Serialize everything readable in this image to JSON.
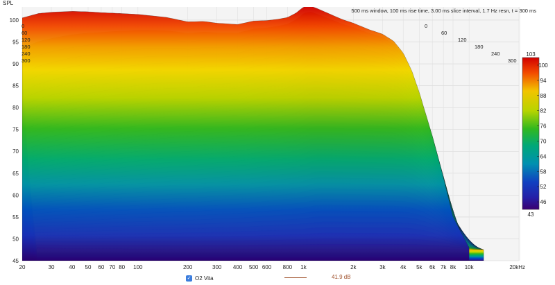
{
  "chart_data": {
    "type": "area",
    "subtype": "waterfall-3d",
    "title": "500 ms window, 100 ms rise time, 3.00 ms slice interval, 1.7 Hz resn, t = 300 ms",
    "ylabel": "SPL",
    "xlabel": "",
    "x_scale": "log",
    "xlim": [
      20,
      20000
    ],
    "ylim": [
      45,
      103
    ],
    "x_ticks": [
      "20",
      "30",
      "40",
      "50",
      "60",
      "70",
      "80",
      "100",
      "200",
      "300",
      "400",
      "500",
      "600",
      "800",
      "1k",
      "2k",
      "3k",
      "4k",
      "5k",
      "6k",
      "7k",
      "8k",
      "10k",
      "20kHz"
    ],
    "x_tick_values": [
      20,
      30,
      40,
      50,
      60,
      70,
      80,
      100,
      200,
      300,
      400,
      500,
      600,
      800,
      1000,
      2000,
      3000,
      4000,
      5000,
      6000,
      7000,
      8000,
      10000,
      20000
    ],
    "y_ticks": [
      "45",
      "50",
      "55",
      "60",
      "65",
      "70",
      "75",
      "80",
      "85",
      "90",
      "95",
      "100"
    ],
    "time_labels_left": [
      "0",
      "60",
      "120",
      "180",
      "240",
      "300"
    ],
    "time_labels_right": [
      "0",
      "60",
      "120",
      "180",
      "240",
      "300"
    ],
    "time_unit": "ms",
    "colorbar": {
      "max_label": "103",
      "min_label": "43",
      "ticks": [
        "100",
        "94",
        "88",
        "82",
        "76",
        "70",
        "64",
        "58",
        "52",
        "46"
      ]
    },
    "series": [
      {
        "name": "O2 Vita",
        "slice_time_ms": 0,
        "x": [
          20,
          25,
          30,
          40,
          50,
          60,
          70,
          80,
          100,
          120,
          150,
          200,
          250,
          300,
          400,
          500,
          600,
          700,
          800,
          900,
          1000,
          1100,
          1200,
          1400,
          1700,
          2000,
          2500,
          3000,
          3500,
          4000,
          4500,
          5000,
          6000,
          7000,
          8000,
          10000
        ],
        "y": [
          100.5,
          101.5,
          101.8,
          102.0,
          101.9,
          101.7,
          101.6,
          101.5,
          101.3,
          101.0,
          100.6,
          99.6,
          99.7,
          99.3,
          99.0,
          99.8,
          99.9,
          100.2,
          100.6,
          101.6,
          103.0,
          103.2,
          102.7,
          101.6,
          100.2,
          99.3,
          97.8,
          96.8,
          95.2,
          92.5,
          88.5,
          83.5,
          73.5,
          64.0,
          55.0,
          48.0
        ]
      },
      {
        "name": "O2 Vita",
        "slice_time_ms": 300,
        "x": [
          20,
          30,
          40,
          60,
          100,
          150,
          200,
          300,
          500,
          1000,
          2000,
          5000,
          10000
        ],
        "y": [
          45.5,
          45.3,
          45.2,
          45.2,
          45.1,
          45.0,
          45.0,
          45.0,
          45.0,
          45.0,
          45.0,
          45.0,
          45.0
        ]
      }
    ],
    "legend": {
      "entries": [
        {
          "label": "O2 Vita",
          "value": "41.9 dB"
        }
      ],
      "placement": "bottom-center"
    },
    "colors": {
      "high": "#d10000",
      "mid_high": "#f2c400",
      "mid": "#18b418",
      "mid_low": "#00a890",
      "low": "#1030c0",
      "floor": "#1a0070",
      "legend_line": "#a0522d",
      "checkbox": "#3b7ddd"
    },
    "grid": true,
    "legend_checkbox_checked": true
  }
}
